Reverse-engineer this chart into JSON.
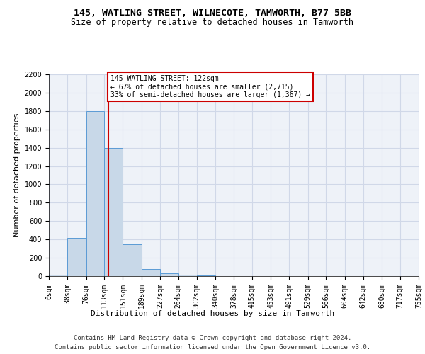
{
  "title": "145, WATLING STREET, WILNECOTE, TAMWORTH, B77 5BB",
  "subtitle": "Size of property relative to detached houses in Tamworth",
  "xlabel": "Distribution of detached houses by size in Tamworth",
  "ylabel": "Number of detached properties",
  "bin_edges": [
    0,
    38,
    76,
    113,
    151,
    189,
    227,
    264,
    302,
    340,
    378,
    415,
    453,
    491,
    529,
    566,
    604,
    642,
    680,
    717,
    755
  ],
  "bar_heights": [
    15,
    420,
    1800,
    1400,
    350,
    80,
    30,
    18,
    8,
    3,
    0,
    0,
    0,
    0,
    0,
    0,
    0,
    0,
    0,
    0
  ],
  "bar_color": "#c8d8e8",
  "bar_edge_color": "#5b9bd5",
  "grid_color": "#d0d8e8",
  "background_color": "#eef2f8",
  "vline_x": 122,
  "vline_color": "#cc0000",
  "annotation_text": "145 WATLING STREET: 122sqm\n← 67% of detached houses are smaller (2,715)\n33% of semi-detached houses are larger (1,367) →",
  "annotation_box_color": "#cc0000",
  "annotation_bg_color": "#ffffff",
  "ylim": [
    0,
    2200
  ],
  "yticks": [
    0,
    200,
    400,
    600,
    800,
    1000,
    1200,
    1400,
    1600,
    1800,
    2000,
    2200
  ],
  "footer_line1": "Contains HM Land Registry data © Crown copyright and database right 2024.",
  "footer_line2": "Contains public sector information licensed under the Open Government Licence v3.0.",
  "title_fontsize": 9.5,
  "subtitle_fontsize": 8.5,
  "tick_fontsize": 7,
  "ylabel_fontsize": 8,
  "xlabel_fontsize": 8,
  "footer_fontsize": 6.5
}
